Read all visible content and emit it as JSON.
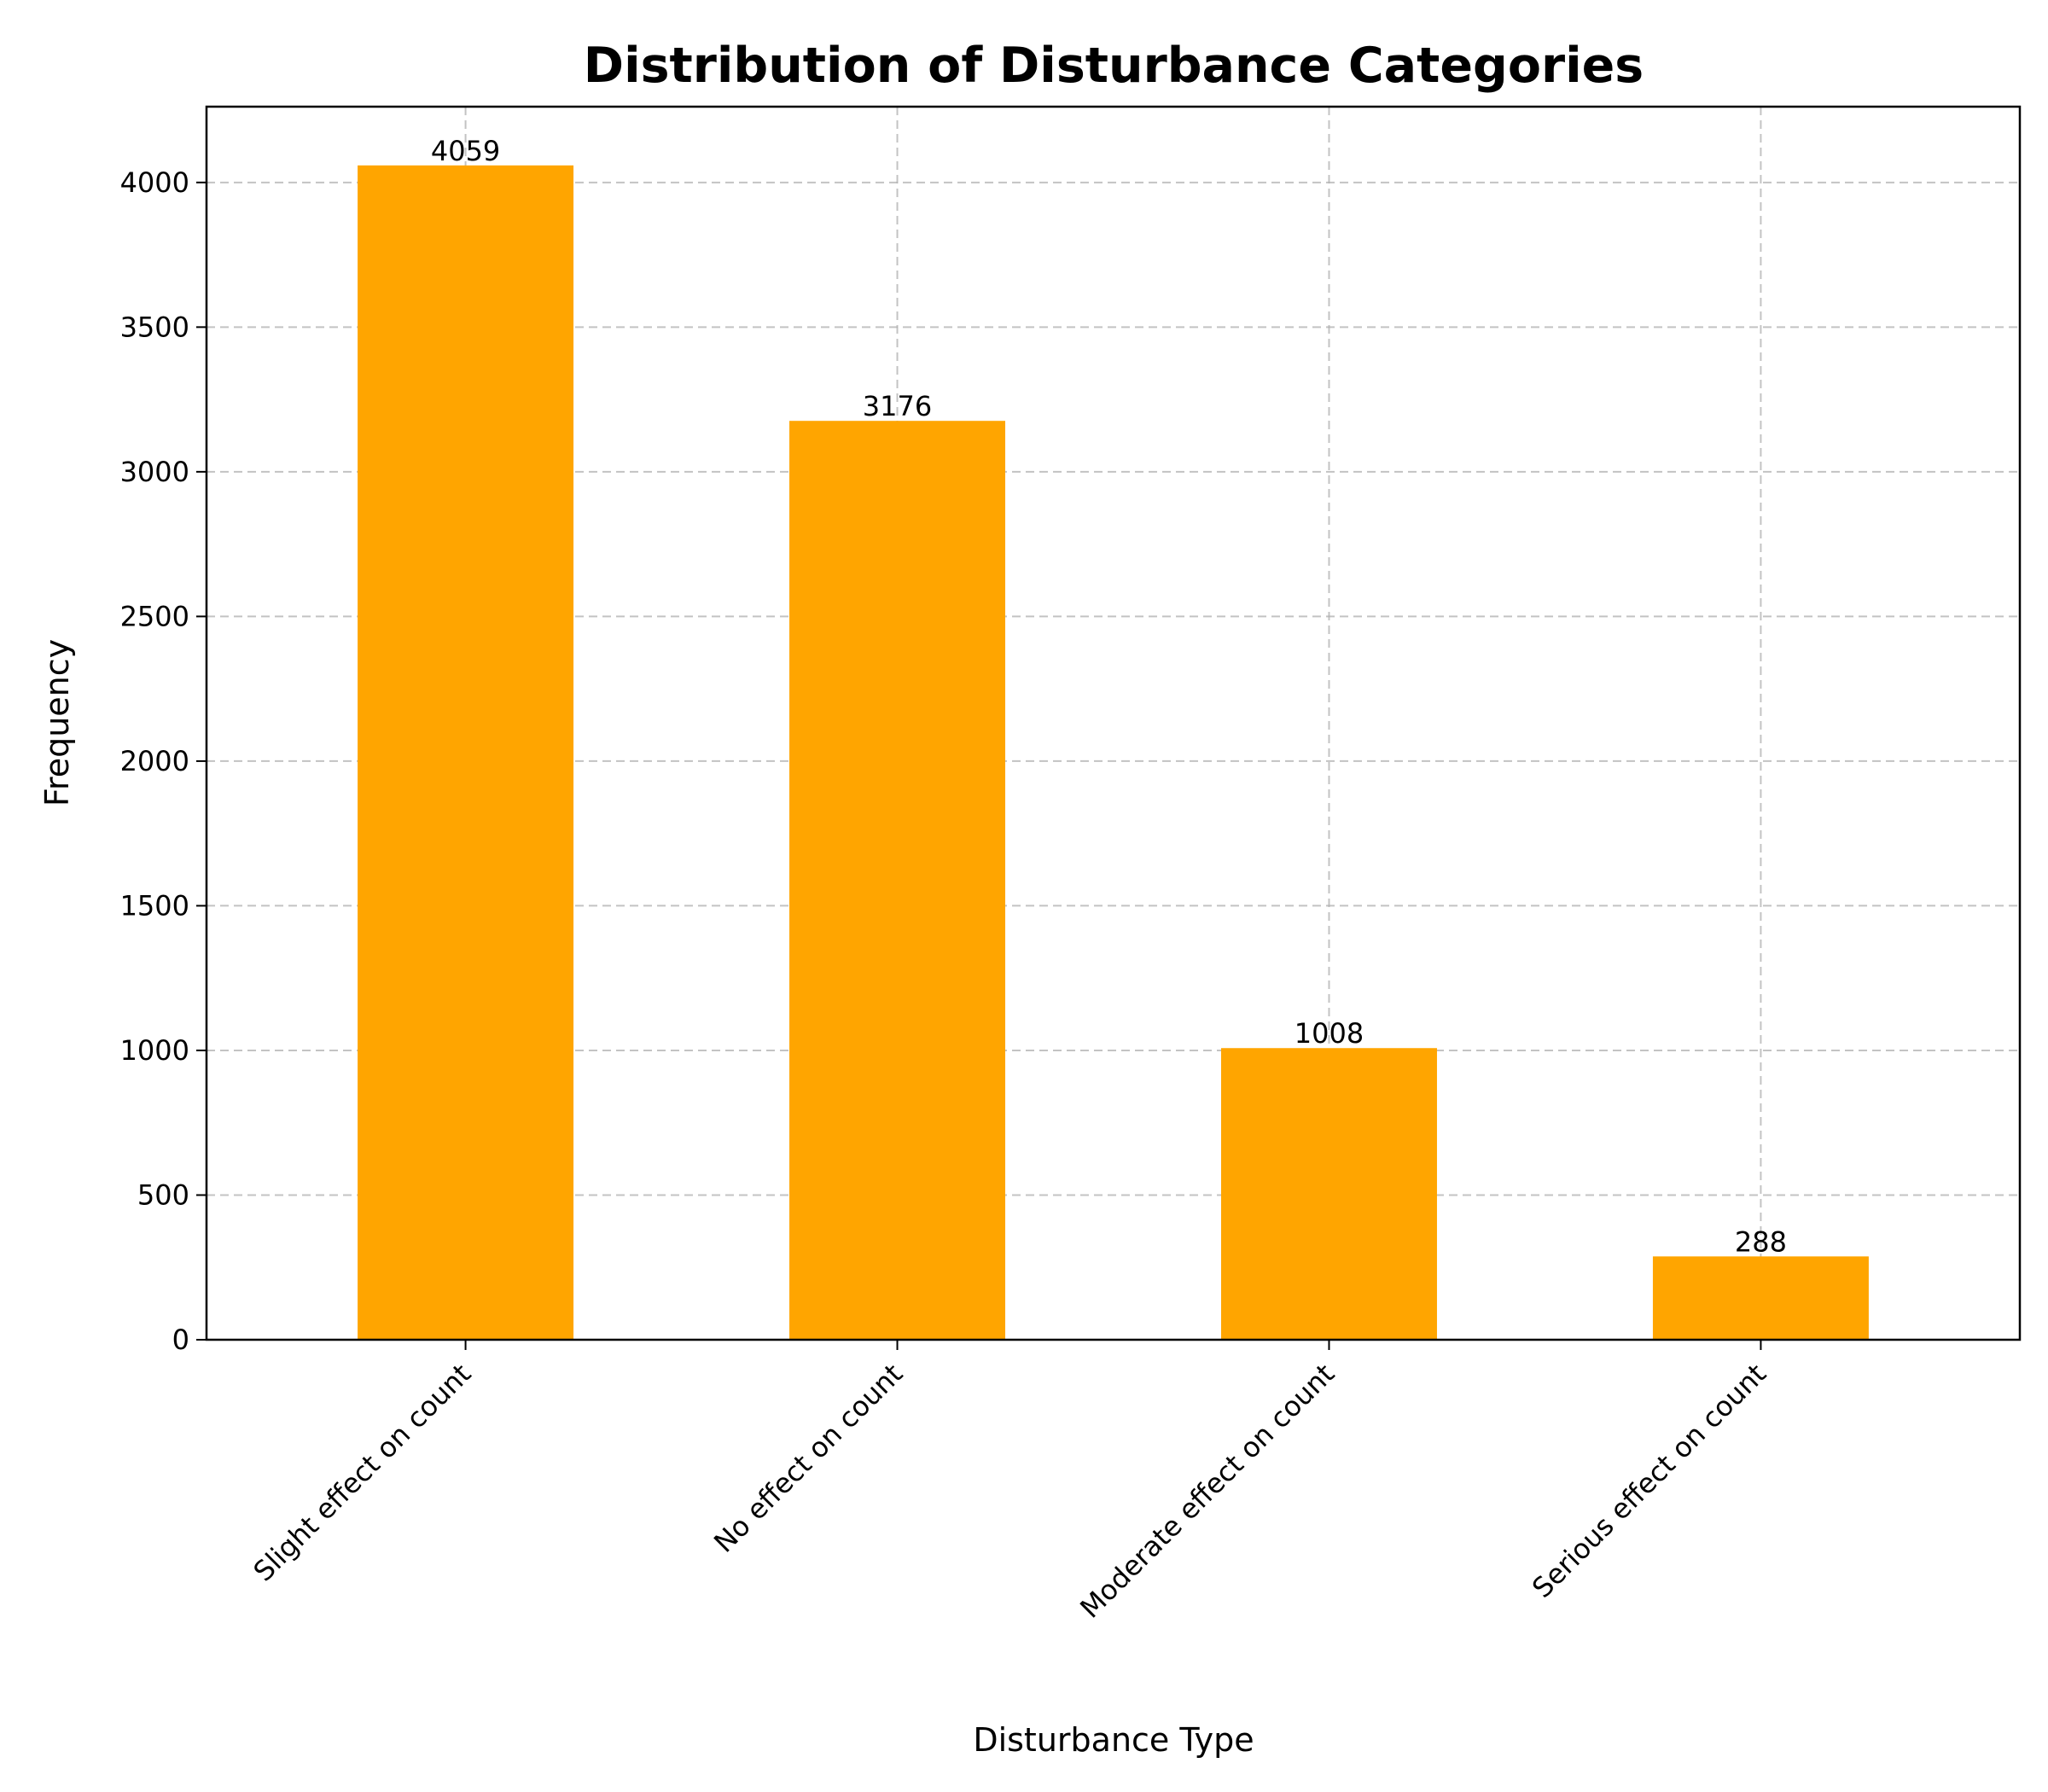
{
  "chart_data": {
    "type": "bar",
    "title": "Distribution of Disturbance Categories",
    "xlabel": "Disturbance Type",
    "ylabel": "Frequency",
    "categories": [
      "Slight effect on count",
      "No effect on count",
      "Moderate effect on count",
      "Serious effect on count"
    ],
    "values": [
      4059,
      3176,
      1008,
      288
    ],
    "data_labels": [
      "4059",
      "3176",
      "1008",
      "288"
    ],
    "yticks": [
      0,
      500,
      1000,
      1500,
      2000,
      2500,
      3000,
      3500,
      4000
    ],
    "ylim": [
      0,
      4262
    ],
    "grid": true,
    "bar_color": "#ffa500"
  }
}
